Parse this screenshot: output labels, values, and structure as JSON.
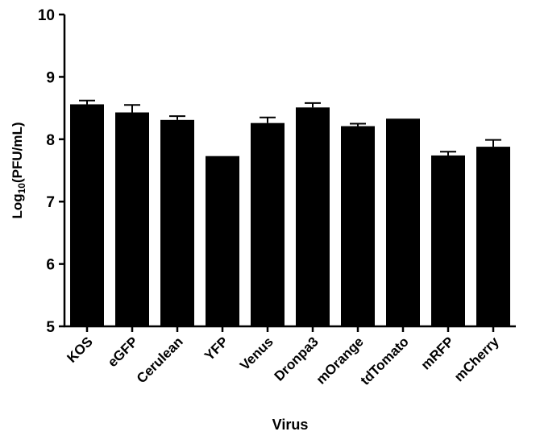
{
  "chart_data": {
    "type": "bar",
    "title": "",
    "xlabel": "Virus",
    "ylabel": {
      "prefix": "Log",
      "subscript": "10",
      "suffix": "(PFU/mL)"
    },
    "ylim": [
      5,
      10
    ],
    "yticks": [
      "5",
      "6",
      "7",
      "8",
      "9",
      "10"
    ],
    "grid": false,
    "legend": "none",
    "bar_color": "#000000",
    "categories": [
      "KOS",
      "eGFP",
      "Cerulean",
      "YFP",
      "Venus",
      "Dronpa3",
      "mOrange",
      "tdTomato",
      "mRFP",
      "mCherry"
    ],
    "values": [
      8.56,
      8.43,
      8.31,
      7.73,
      8.26,
      8.51,
      8.21,
      8.33,
      7.74,
      7.88
    ],
    "errors": [
      0.06,
      0.12,
      0.06,
      0.0,
      0.09,
      0.07,
      0.04,
      0.0,
      0.06,
      0.11
    ]
  }
}
